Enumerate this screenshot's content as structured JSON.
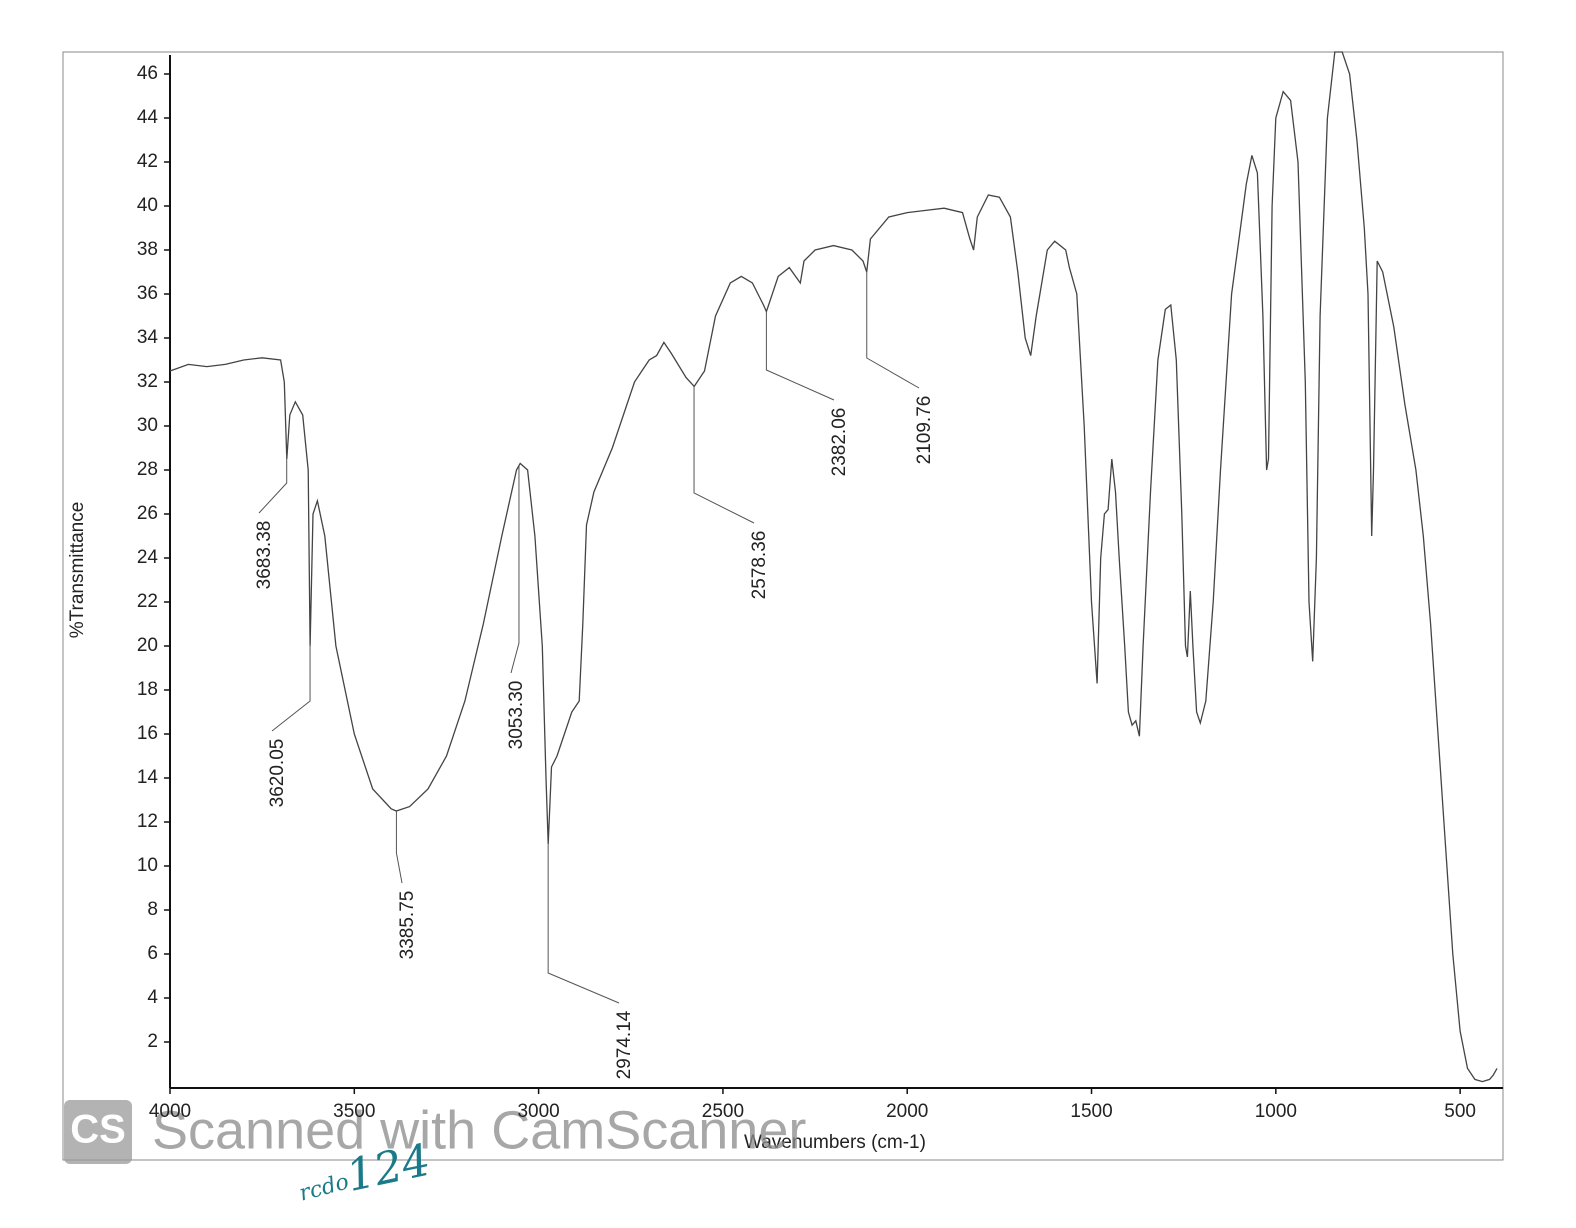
{
  "chart_data": {
    "type": "line",
    "x_label": "Wavenumbers (cm-1)",
    "y_label": "%Transmittance",
    "xlim": [
      4000,
      400
    ],
    "ylim": [
      0,
      47
    ],
    "xticks": [
      4000,
      3500,
      3000,
      2500,
      2000,
      1500,
      1000,
      500
    ],
    "yticks": [
      2,
      4,
      6,
      8,
      10,
      12,
      14,
      16,
      18,
      20,
      22,
      24,
      26,
      28,
      30,
      32,
      34,
      36,
      38,
      40,
      42,
      44,
      46
    ],
    "color": "#444444",
    "x": [
      4000,
      3950,
      3900,
      3850,
      3800,
      3750,
      3700,
      3690,
      3683,
      3675,
      3660,
      3640,
      3625,
      3620,
      3612,
      3600,
      3580,
      3550,
      3500,
      3450,
      3400,
      3386,
      3350,
      3300,
      3250,
      3200,
      3150,
      3100,
      3060,
      3050,
      3030,
      3010,
      2990,
      2980,
      2974,
      2965,
      2950,
      2930,
      2910,
      2890,
      2880,
      2870,
      2850,
      2800,
      2760,
      2740,
      2720,
      2700,
      2680,
      2660,
      2640,
      2600,
      2578,
      2550,
      2520,
      2480,
      2450,
      2420,
      2390,
      2382,
      2350,
      2320,
      2290,
      2280,
      2250,
      2200,
      2150,
      2120,
      2110,
      2100,
      2050,
      2000,
      1950,
      1900,
      1850,
      1830,
      1820,
      1810,
      1780,
      1750,
      1720,
      1700,
      1680,
      1665,
      1650,
      1620,
      1600,
      1570,
      1560,
      1540,
      1520,
      1500,
      1485,
      1475,
      1465,
      1455,
      1445,
      1435,
      1425,
      1410,
      1400,
      1390,
      1380,
      1370,
      1360,
      1340,
      1320,
      1300,
      1285,
      1270,
      1255,
      1245,
      1240,
      1232,
      1225,
      1215,
      1205,
      1190,
      1170,
      1150,
      1120,
      1100,
      1080,
      1065,
      1050,
      1035,
      1025,
      1020,
      1010,
      1000,
      980,
      960,
      940,
      920,
      910,
      900,
      890,
      880,
      860,
      840,
      820,
      800,
      780,
      760,
      750,
      740,
      735,
      725,
      710,
      680,
      650,
      620,
      600,
      580,
      560,
      540,
      520,
      500,
      480,
      460,
      440,
      420,
      410,
      400
    ],
    "values": [
      32.5,
      32.8,
      32.7,
      32.8,
      33.0,
      33.1,
      33.0,
      32.0,
      28.5,
      30.5,
      31.1,
      30.5,
      28,
      20,
      26,
      26.6,
      25,
      20,
      16,
      13.5,
      12.6,
      12.5,
      12.7,
      13.5,
      15,
      17.5,
      21,
      25,
      28,
      28.3,
      28,
      25,
      20,
      14,
      11,
      14.5,
      15,
      16,
      17,
      17.5,
      21,
      25.5,
      27,
      29,
      31,
      32,
      32.5,
      33,
      33.2,
      33.8,
      33.3,
      32.2,
      31.8,
      32.5,
      35,
      36.5,
      36.8,
      36.5,
      35.5,
      35.2,
      36.8,
      37.2,
      36.5,
      37.5,
      38,
      38.2,
      38,
      37.5,
      37,
      38.5,
      39.5,
      39.7,
      39.8,
      39.9,
      39.7,
      38.5,
      38,
      39.5,
      40.5,
      40.4,
      39.5,
      37,
      34,
      33.2,
      35,
      38,
      38.4,
      38,
      37.2,
      36,
      30,
      22,
      18.3,
      24,
      26,
      26.2,
      28.5,
      27,
      24,
      20,
      17,
      16.4,
      16.6,
      15.9,
      20,
      27,
      33,
      35.3,
      35.5,
      33,
      26,
      20,
      19.5,
      22.5,
      20,
      17,
      16.5,
      17.5,
      22,
      28,
      36,
      38.5,
      41,
      42.3,
      41.5,
      35,
      28,
      28.5,
      40,
      44,
      45.2,
      44.8,
      42,
      32,
      22,
      19.3,
      24,
      35,
      44,
      47,
      47,
      46,
      43,
      39,
      36,
      25,
      28,
      37.5,
      37,
      34.5,
      31,
      28,
      25,
      21,
      16,
      11,
      6,
      2.5,
      0.8,
      0.3,
      0.2,
      0.3,
      0.5,
      0.8
    ],
    "annotations": [
      3683.38,
      3620.05,
      3385.75,
      {
        "value": 3053.3,
        "label": "3053.30"
      },
      2974.14,
      2578.36,
      2382.06,
      2109.76
    ]
  },
  "watermark": {
    "logo": "CS",
    "text": "Scanned with CamScanner"
  },
  "handwriting": [
    "rcdo",
    "124"
  ]
}
